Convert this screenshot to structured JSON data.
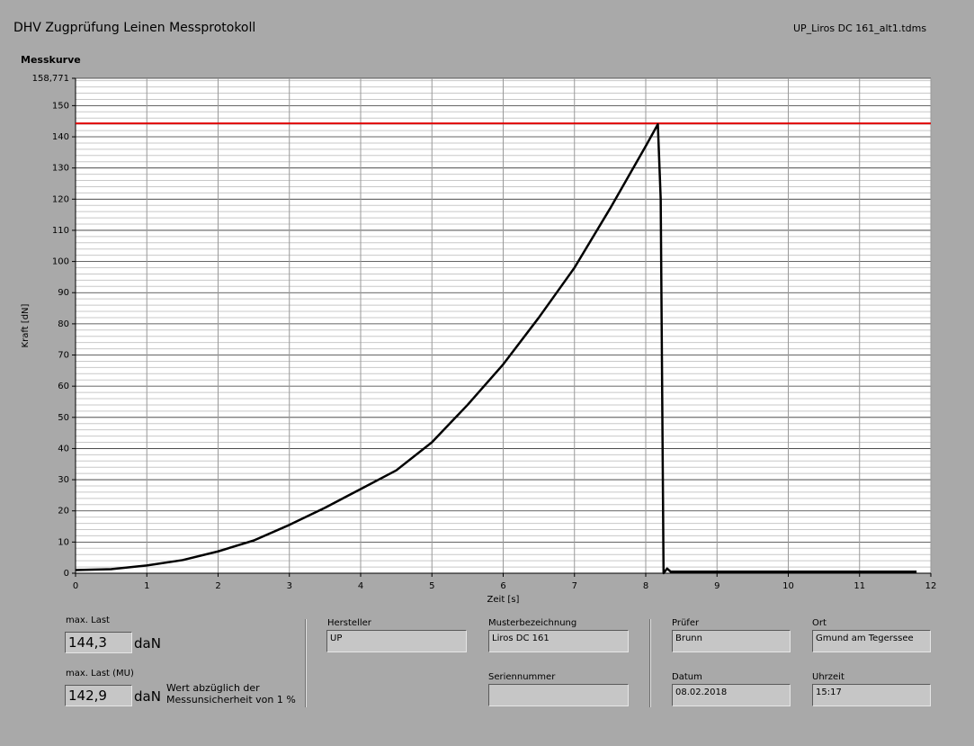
{
  "header": {
    "title": "DHV Zugprüfung Leinen Messprotokoll",
    "file": "UP_Liros DC 161_alt1.tdms"
  },
  "chart_data": {
    "type": "line",
    "title": "Messkurve",
    "xlabel": "Zeit [s]",
    "ylabel": "Kraft [dN]",
    "x": [
      0,
      0.5,
      1,
      1.5,
      2,
      2.5,
      3,
      3.5,
      4,
      4.5,
      5,
      5.5,
      6,
      6.5,
      7,
      7.5,
      8,
      8.17,
      8.21,
      8.25,
      8.3,
      8.35,
      9,
      10,
      11,
      11.8
    ],
    "series": [
      {
        "color": "#000000",
        "values": [
          1,
          1.3,
          2.5,
          4.2,
          7,
          10.5,
          15.5,
          21,
          27,
          33,
          42,
          54,
          67,
          82,
          98,
          117,
          137,
          144,
          120,
          0,
          1.5,
          0.5,
          0.5,
          0.5,
          0.5,
          0.5
        ]
      }
    ],
    "xlim": [
      0,
      12
    ],
    "xticks": [
      0,
      1,
      2,
      3,
      4,
      5,
      6,
      7,
      8,
      9,
      10,
      11,
      12
    ],
    "ylim": [
      0,
      158.771
    ],
    "yticks": [
      0,
      10,
      20,
      30,
      40,
      50,
      60,
      70,
      80,
      90,
      100,
      110,
      120,
      130,
      140,
      150,
      {
        "value": 158.771,
        "label": "158,771"
      }
    ],
    "grid": true,
    "minor_grid": true,
    "max_line": {
      "value": 144.3,
      "color": "#e00000"
    }
  },
  "fields": {
    "max_last": {
      "label": "max. Last",
      "value": "144,3",
      "unit": "daN"
    },
    "max_last_mu": {
      "label": "max. Last (MU)",
      "value": "142,9",
      "unit": "daN",
      "note": [
        "Wert abzüglich der",
        "Messunsicherheit von 1 %"
      ]
    },
    "hersteller": {
      "label": "Hersteller",
      "value": "UP"
    },
    "musterbezeichnung": {
      "label": "Musterbezeichnung",
      "value": "Liros DC 161"
    },
    "seriennummer": {
      "label": "Seriennummer"
    },
    "pruefer": {
      "label": "Prüfer",
      "value": "Brunn"
    },
    "ort": {
      "label": "Ort",
      "value": "Gmund am Tegerssee"
    },
    "datum": {
      "label": "Datum",
      "value": "08.02.2018"
    },
    "uhrzeit": {
      "label": "Uhrzeit",
      "value": "15:17"
    }
  }
}
